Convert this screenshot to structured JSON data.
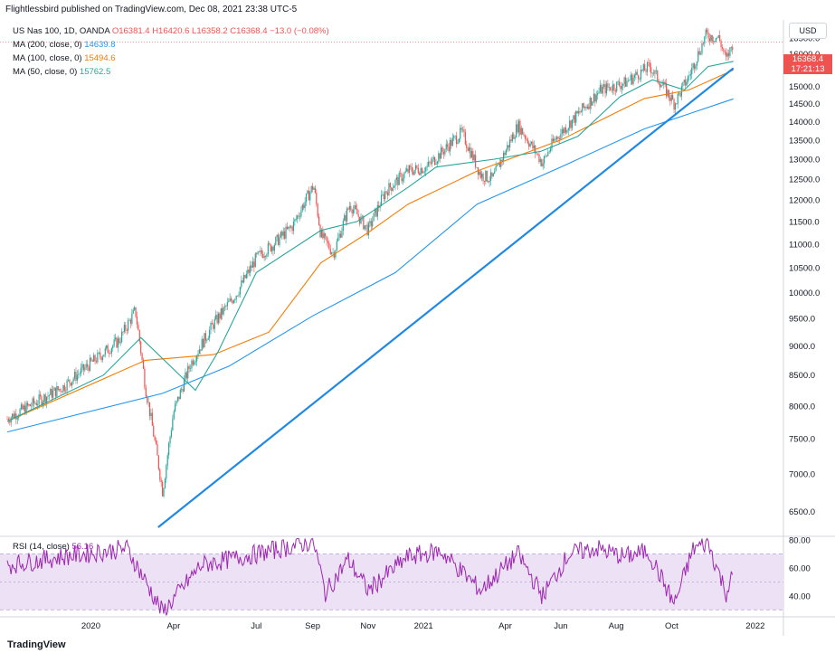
{
  "header": {
    "publisher": "Flightlessbird published on TradingView.com, Dec 08, 2021 23:38 UTC-5"
  },
  "footer": {
    "logo_text": "TradingView"
  },
  "legend": {
    "symbol": "US Nas 100, 1D, OANDA",
    "ohlc": "O16381.4 H16420.6 L16358.2 C16368.4 −13.0 (−0.08%)",
    "ma200_label": "MA (200, close, 0)",
    "ma200_value": "14639.8",
    "ma100_label": "MA (100, close, 0)",
    "ma100_value": "15494.6",
    "ma50_label": "MA (50, close, 0)",
    "ma50_value": "15762.5"
  },
  "rsi_legend": {
    "label": "RSI (14, close)",
    "value": "56.16"
  },
  "price_axis": {
    "currency": "USD",
    "last_price": "16368.4",
    "countdown": "17:21:13"
  },
  "colors": {
    "up": "#26a69a",
    "down": "#ef5350",
    "ma200": "#2196f3",
    "ma100": "#f57c00",
    "ma50": "#26a69a",
    "trendline": "#1e88e5",
    "rsi": "#9c27b0",
    "rsi_band": "#ede1f5"
  },
  "chart_data": [
    {
      "type": "line",
      "title": "US Nas 100, 1D, OANDA",
      "ylim": [
        6200,
        17100
      ],
      "y_ticks": [
        6500,
        7000,
        7500,
        8000,
        8500,
        9000,
        9500,
        10000,
        10500,
        11000,
        11500,
        12000,
        12500,
        13000,
        13500,
        14000,
        14500,
        15000,
        15500,
        16000,
        16500
      ],
      "x_ticks": [
        "2020",
        "Apr",
        "Jul",
        "Sep",
        "Nov",
        "2021",
        "Apr",
        "Jun",
        "Aug",
        "Oct",
        "2022"
      ],
      "series": [
        {
          "name": "US Nas 100",
          "style": "candles",
          "x": [
            "2019-10",
            "2019-12",
            "2020-01",
            "2020-02",
            "2020-02-19",
            "2020-03-01",
            "2020-03-20",
            "2020-04-01",
            "2020-04-20",
            "2020-05-15",
            "2020-06-10",
            "2020-07-01",
            "2020-07-20",
            "2020-08-10",
            "2020-09-02",
            "2020-09-10",
            "2020-09-24",
            "2020-10-12",
            "2020-11-01",
            "2020-11-20",
            "2020-12-15",
            "2021-01-05",
            "2021-02-12",
            "2021-03-05",
            "2021-03-18",
            "2021-04-15",
            "2021-05-12",
            "2021-05-25",
            "2021-06-20",
            "2021-07-15",
            "2021-08-10",
            "2021-09-07",
            "2021-10-04",
            "2021-10-20",
            "2021-11-08",
            "2021-11-22",
            "2021-11-30",
            "2021-12-08"
          ],
          "values": [
            7800,
            8300,
            8700,
            9100,
            9650,
            8300,
            6750,
            7900,
            8700,
            9400,
            10000,
            10700,
            11000,
            11400,
            12350,
            11200,
            10800,
            11900,
            11300,
            12200,
            12700,
            12800,
            13700,
            12600,
            12500,
            13900,
            12900,
            13500,
            14200,
            14900,
            15100,
            15600,
            14500,
            15300,
            16600,
            16500,
            15800,
            16368.4
          ]
        },
        {
          "name": "MA (200, close, 0)",
          "x": [
            "2019-10",
            "2020-03-20",
            "2020-06-01",
            "2020-09-01",
            "2020-12-01",
            "2021-03-01",
            "2021-06-01",
            "2021-09-01",
            "2021-12-08"
          ],
          "values": [
            7600,
            8200,
            8650,
            9550,
            10400,
            11900,
            12800,
            13800,
            14639.8
          ]
        },
        {
          "name": "MA (100, close, 0)",
          "x": [
            "2019-10",
            "2020-03-01",
            "2020-05-15",
            "2020-07-15",
            "2020-09-10",
            "2020-11-01",
            "2020-12-15",
            "2021-03-01",
            "2021-06-01",
            "2021-09-01",
            "2021-10-20",
            "2021-12-08"
          ],
          "values": [
            7760,
            8750,
            8850,
            9250,
            10600,
            11250,
            11900,
            12700,
            13500,
            14650,
            14900,
            15494.6
          ]
        },
        {
          "name": "MA (50, close, 0)",
          "x": [
            "2019-10",
            "2020-01-15",
            "2020-02-25",
            "2020-04-25",
            "2020-05-20",
            "2020-07-01",
            "2020-09-10",
            "2020-10-20",
            "2020-12-15",
            "2021-01-15",
            "2021-03-20",
            "2021-05-10",
            "2021-06-20",
            "2021-08-05",
            "2021-09-10",
            "2021-10-15",
            "2021-11-10",
            "2021-12-08"
          ],
          "values": [
            7760,
            8500,
            9150,
            8250,
            8900,
            10400,
            11300,
            11500,
            12300,
            12800,
            13000,
            13200,
            13600,
            14700,
            15200,
            14900,
            15600,
            15762.5
          ]
        },
        {
          "name": "trendline",
          "style": "drawing",
          "x": [
            "2020-03-15",
            "2021-12-08"
          ],
          "values": [
            6300,
            15550
          ]
        }
      ]
    },
    {
      "type": "line",
      "title": "RSI (14, close)",
      "ylim": [
        25,
        82
      ],
      "y_ticks": [
        40,
        60,
        80
      ],
      "band": [
        30,
        70
      ],
      "series": [
        {
          "name": "RSI (14, close)",
          "x": [
            "2019-10",
            "2019-12",
            "2020-02-10",
            "2020-03-20",
            "2020-05-01",
            "2020-07-01",
            "2020-09-02",
            "2020-09-15",
            "2020-10-10",
            "2020-11-01",
            "2020-12-15",
            "2021-01-20",
            "2021-03-05",
            "2021-04-15",
            "2021-05-12",
            "2021-06-10",
            "2021-07-10",
            "2021-08-10",
            "2021-09-05",
            "2021-10-04",
            "2021-10-25",
            "2021-11-10",
            "2021-11-30",
            "2021-12-08"
          ],
          "values": [
            62,
            68,
            74,
            28,
            62,
            70,
            79,
            42,
            66,
            44,
            68,
            72,
            44,
            70,
            40,
            70,
            74,
            68,
            72,
            34,
            74,
            78,
            42,
            56.16
          ]
        }
      ]
    }
  ]
}
